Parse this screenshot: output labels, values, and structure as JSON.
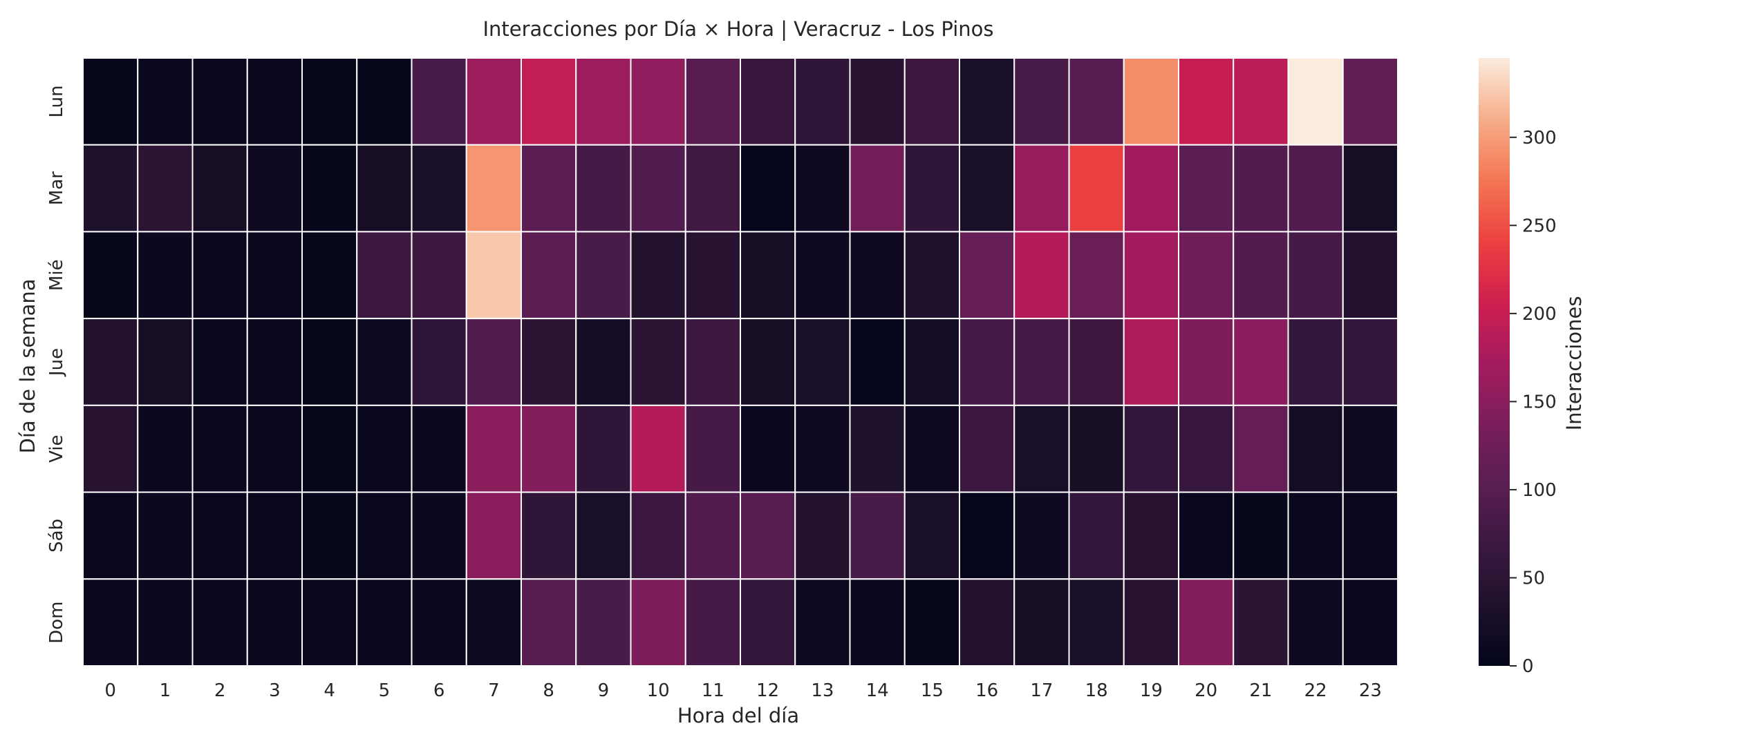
{
  "chart_data": {
    "type": "heatmap",
    "title": "Interacciones por Día × Hora | Veracruz - Los Pinos",
    "xlabel": "Hora del día",
    "ylabel": "Día de la semana",
    "x_categories": [
      "0",
      "1",
      "2",
      "3",
      "4",
      "5",
      "6",
      "7",
      "8",
      "9",
      "10",
      "11",
      "12",
      "13",
      "14",
      "15",
      "16",
      "17",
      "18",
      "19",
      "20",
      "21",
      "22",
      "23"
    ],
    "y_categories": [
      "Lun",
      "Mar",
      "Mié",
      "Jue",
      "Vie",
      "Sáb",
      "Dom"
    ],
    "values": [
      [
        5,
        8,
        8,
        8,
        5,
        5,
        85,
        165,
        195,
        165,
        155,
        100,
        65,
        55,
        45,
        70,
        30,
        85,
        100,
        290,
        200,
        190,
        345,
        110
      ],
      [
        35,
        50,
        25,
        15,
        5,
        25,
        30,
        295,
        105,
        80,
        95,
        75,
        3,
        15,
        130,
        55,
        30,
        160,
        240,
        170,
        105,
        95,
        95,
        25
      ],
      [
        5,
        10,
        8,
        8,
        5,
        70,
        70,
        325,
        105,
        85,
        40,
        45,
        25,
        15,
        15,
        35,
        115,
        185,
        120,
        170,
        125,
        95,
        80,
        40
      ],
      [
        40,
        25,
        8,
        8,
        5,
        15,
        55,
        95,
        50,
        20,
        50,
        70,
        25,
        30,
        2,
        20,
        80,
        80,
        70,
        180,
        140,
        150,
        60,
        60
      ],
      [
        45,
        10,
        8,
        8,
        5,
        8,
        10,
        150,
        145,
        55,
        185,
        80,
        8,
        15,
        35,
        15,
        70,
        30,
        25,
        60,
        65,
        115,
        20,
        15
      ],
      [
        8,
        10,
        8,
        8,
        5,
        8,
        10,
        150,
        55,
        30,
        70,
        95,
        100,
        40,
        85,
        30,
        3,
        15,
        60,
        45,
        8,
        5,
        8,
        8
      ],
      [
        8,
        10,
        10,
        10,
        8,
        8,
        10,
        15,
        100,
        85,
        140,
        80,
        60,
        15,
        8,
        5,
        40,
        25,
        30,
        45,
        145,
        50,
        15,
        10
      ]
    ],
    "colorbar": {
      "label": "Interacciones",
      "min": 0,
      "max": 345,
      "ticks": [
        0,
        50,
        100,
        150,
        200,
        250,
        300
      ]
    },
    "colormap": "rocket"
  }
}
